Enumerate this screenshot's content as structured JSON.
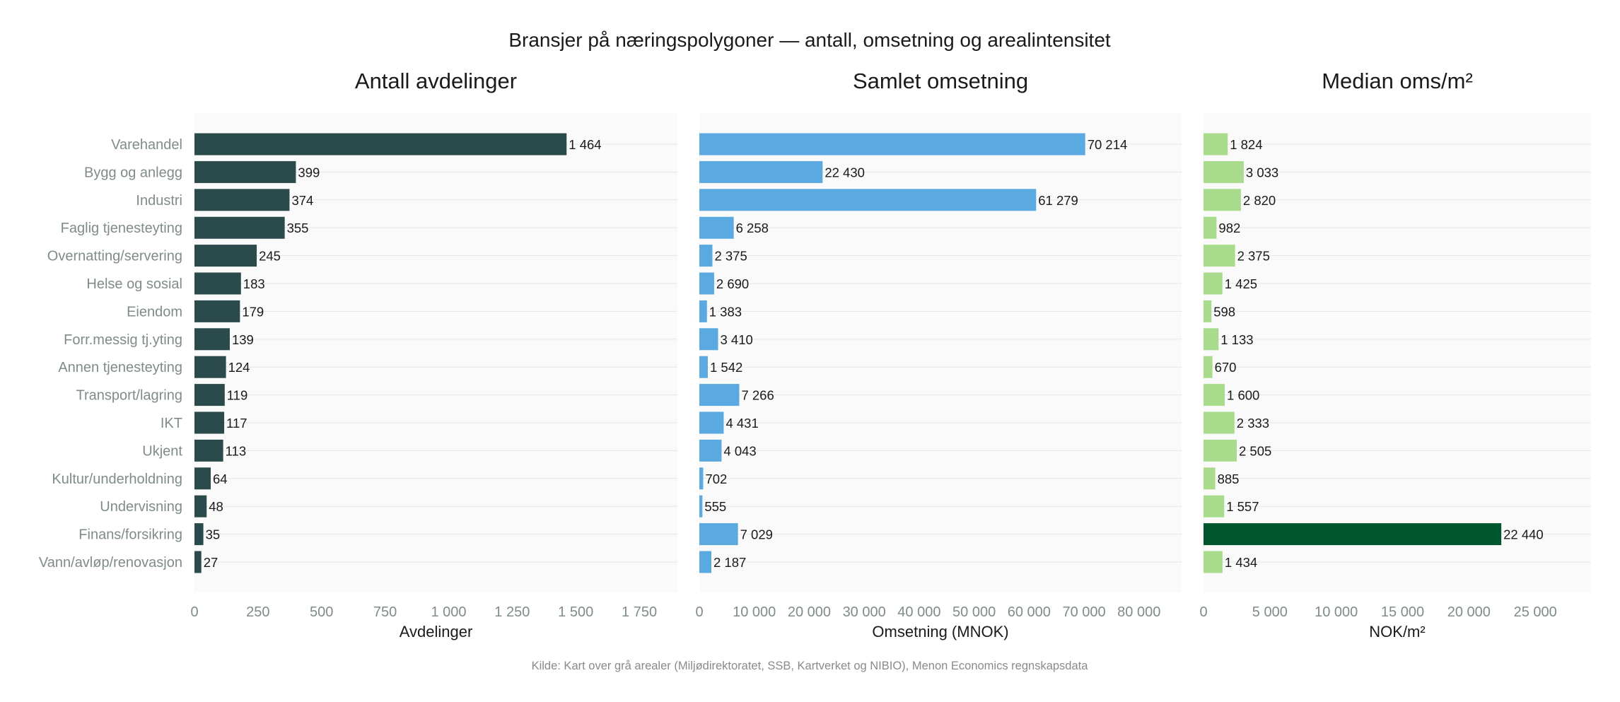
{
  "title": "Bransjer på næringspolygoner — antall, omsetning og arealintensitet",
  "source": "Kilde: Kart over grå arealer (Miljødirektoratet, SSB, Kartverket og NIBIO), Menon Economics regnskapsdata",
  "colors": {
    "panel_bg": "#fafafa",
    "gridline": "#e6e6e6",
    "bar_dark": "#2b4a4c",
    "bar_blue": "#5aa9e0",
    "bar_lightgreen": "#a8dc8c",
    "bar_highlight": "#00562d"
  },
  "chart_data": [
    {
      "type": "bar",
      "orientation": "horizontal",
      "title": "Antall avdelinger",
      "xlabel": "Avdelinger",
      "ylabel": "",
      "xlim": [
        0,
        1900
      ],
      "xticks": [
        0,
        250,
        500,
        750,
        1000,
        1250,
        1500,
        1750
      ],
      "xtick_labels": [
        "0",
        "250",
        "500",
        "750",
        "1 000",
        "1 250",
        "1 500",
        "1 750"
      ],
      "color": "#2b4a4c",
      "categories": [
        "Varehandel",
        "Bygg og anlegg",
        "Industri",
        "Faglig tjenesteyting",
        "Overnatting/servering",
        "Helse og sosial",
        "Eiendom",
        "Forr.messig tj.yting",
        "Annen tjenesteyting",
        "Transport/lagring",
        "IKT",
        "Ukjent",
        "Kultur/underholdning",
        "Undervisning",
        "Finans/forsikring",
        "Vann/avløp/renovasjon"
      ],
      "values": [
        1464,
        399,
        374,
        355,
        245,
        183,
        179,
        139,
        124,
        119,
        117,
        113,
        64,
        48,
        35,
        27
      ],
      "value_labels": [
        "1 464",
        "399",
        "374",
        "355",
        "245",
        "183",
        "179",
        "139",
        "124",
        "119",
        "117",
        "113",
        "64",
        "48",
        "35",
        "27"
      ],
      "grid": true
    },
    {
      "type": "bar",
      "orientation": "horizontal",
      "title": "Samlet omsetning",
      "xlabel": "Omsetning (MNOK)",
      "ylabel": "",
      "xlim": [
        0,
        87750
      ],
      "xticks": [
        0,
        10000,
        20000,
        30000,
        40000,
        50000,
        60000,
        70000,
        80000
      ],
      "xtick_labels": [
        "0",
        "10 000",
        "20 000",
        "30 000",
        "40 000",
        "50 000",
        "60 000",
        "70 000",
        "80 000"
      ],
      "color": "#5aa9e0",
      "categories": [
        "Varehandel",
        "Bygg og anlegg",
        "Industri",
        "Faglig tjenesteyting",
        "Overnatting/servering",
        "Helse og sosial",
        "Eiendom",
        "Forr.messig tj.yting",
        "Annen tjenesteyting",
        "Transport/lagring",
        "IKT",
        "Ukjent",
        "Kultur/underholdning",
        "Undervisning",
        "Finans/forsikring",
        "Vann/avløp/renovasjon"
      ],
      "values": [
        70214,
        22430,
        61279,
        6258,
        2375,
        2690,
        1383,
        3410,
        1542,
        7266,
        4431,
        4043,
        702,
        555,
        7029,
        2187
      ],
      "value_labels": [
        "70 214",
        "22 430",
        "61 279",
        "6 258",
        "2 375",
        "2 690",
        "1 383",
        "3 410",
        "1 542",
        "7 266",
        "4 431",
        "4 043",
        "702",
        "555",
        "7 029",
        "2 187"
      ],
      "grid": true
    },
    {
      "type": "bar",
      "orientation": "horizontal",
      "title": "Median oms/m²",
      "xlabel": "NOK/m²",
      "ylabel": "",
      "xlim": [
        0,
        29200
      ],
      "xticks": [
        0,
        5000,
        10000,
        15000,
        20000,
        25000
      ],
      "xtick_labels": [
        "0",
        "5 000",
        "10 000",
        "15 000",
        "20 000",
        "25 000"
      ],
      "color": "#a8dc8c",
      "highlight": {
        "category": "Finans/forsikring",
        "color": "#00562d"
      },
      "categories": [
        "Varehandel",
        "Bygg og anlegg",
        "Industri",
        "Faglig tjenesteyting",
        "Overnatting/servering",
        "Helse og sosial",
        "Eiendom",
        "Forr.messig tj.yting",
        "Annen tjenesteyting",
        "Transport/lagring",
        "IKT",
        "Ukjent",
        "Kultur/underholdning",
        "Undervisning",
        "Finans/forsikring",
        "Vann/avløp/renovasjon"
      ],
      "values": [
        1824,
        3033,
        2820,
        982,
        2375,
        1425,
        598,
        1133,
        670,
        1600,
        2333,
        2505,
        885,
        1557,
        22440,
        1434
      ],
      "value_labels": [
        "1 824",
        "3 033",
        "2 820",
        "982",
        "2 375",
        "1 425",
        "598",
        "1 133",
        "670",
        "1 600",
        "2 333",
        "2 505",
        "885",
        "1 557",
        "22 440",
        "1 434"
      ],
      "grid": true
    }
  ]
}
